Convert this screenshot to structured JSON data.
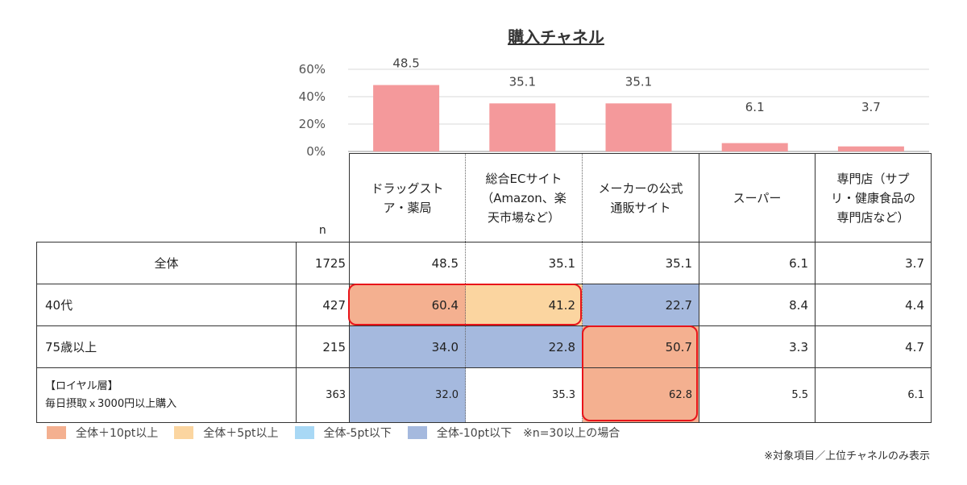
{
  "chart_data": {
    "type": "bar",
    "title": "購入チャネル",
    "y_ticks": [
      "60%",
      "40%",
      "20%",
      "0%"
    ],
    "ylim": [
      0,
      60
    ],
    "categories": [
      "ドラッグストア・薬局",
      "総合ECサイト（Amazon、楽天市場など）",
      "メーカーの公式通販サイト",
      "スーパー",
      "専門店（サプリ・健康食品の専門店など）"
    ],
    "values": [
      48.5,
      35.1,
      35.1,
      6.1,
      3.7
    ],
    "value_labels": [
      "48.5",
      "35.1",
      "35.1",
      "6.1",
      "3.7"
    ],
    "bar_color": "#f4999b",
    "grid": true
  },
  "table": {
    "n_header": "n",
    "headers": [
      [
        "ドラッグスト",
        "ア・薬局"
      ],
      [
        "総合ECサイト",
        "（Amazon、楽",
        "天市場など）"
      ],
      [
        "メーカーの公式",
        "通販サイト"
      ],
      [
        "スーパー"
      ],
      [
        "専門店（サプ",
        "リ・健康食品の",
        "専門店など）"
      ]
    ],
    "rows": [
      {
        "label": "全体",
        "n": "1725",
        "values": [
          "48.5",
          "35.1",
          "35.1",
          "6.1",
          "3.7"
        ],
        "fills": [
          "",
          "",
          "",
          "",
          ""
        ]
      },
      {
        "label": "40代",
        "n": "427",
        "values": [
          "60.4",
          "41.2",
          "22.7",
          "8.4",
          "4.4"
        ],
        "fills": [
          "#f4b090",
          "#fbd5a0",
          "#a5b9de",
          "",
          ""
        ]
      },
      {
        "label": "75歳以上",
        "n": "215",
        "values": [
          "34.0",
          "22.8",
          "50.7",
          "3.3",
          "4.7"
        ],
        "fills": [
          "#a5b9de",
          "#a5b9de",
          "#f4b090",
          "",
          ""
        ]
      },
      {
        "label_lines": [
          "【ロイヤル層】",
          "毎日摂取ｘ3000円以上購入"
        ],
        "n": "363",
        "values": [
          "32.0",
          "35.3",
          "62.8",
          "5.5",
          "6.1"
        ],
        "fills": [
          "#a5b9de",
          "",
          "#f4b090",
          "",
          ""
        ]
      }
    ]
  },
  "legend": [
    {
      "label": "全体＋10pt以上",
      "color": "#f4b090"
    },
    {
      "label": "全体＋5pt以上",
      "color": "#fbd5a0"
    },
    {
      "label": "全体-5pt以下",
      "color": "#a8d8f5"
    },
    {
      "label": "全体-10pt以下",
      "color": "#a5b9de"
    }
  ],
  "legend_note": "※n=30以上の場合",
  "footnote": "※対象項目／上位チャネルのみ表示",
  "highlight_color": "#e8141a"
}
